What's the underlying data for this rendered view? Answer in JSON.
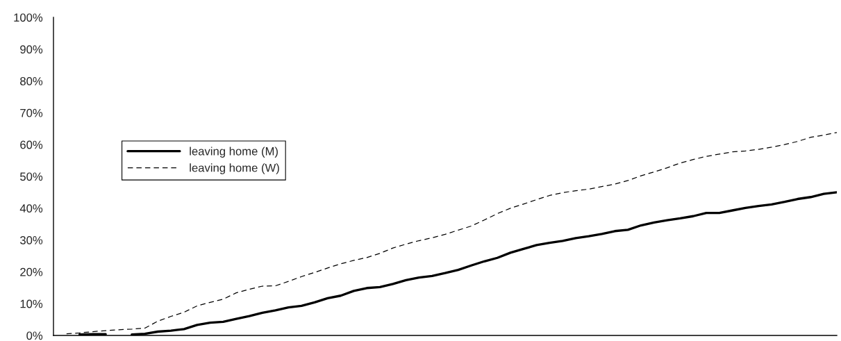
{
  "chart_data": {
    "type": "line",
    "categories": [
      null,
      null,
      null,
      null,
      null,
      null,
      null,
      null,
      null,
      null,
      null,
      null,
      null,
      null,
      null,
      null,
      null,
      null,
      null,
      null,
      null,
      null,
      null,
      null,
      null,
      null,
      null,
      null,
      null,
      null,
      null,
      null,
      null,
      null,
      null,
      null,
      null,
      null,
      null,
      null,
      null,
      null,
      null,
      null,
      null,
      null,
      null,
      null,
      null,
      null,
      null,
      null,
      null,
      null,
      null,
      null,
      null,
      null,
      null,
      null
    ],
    "series": [
      {
        "name": "leaving home (M)",
        "color": "#000000",
        "line_style": "solid",
        "values": [
          null,
          0.3,
          0.4,
          0.4,
          null,
          0.3,
          0.5,
          1.2,
          1.5,
          2.0,
          3.3,
          4.0,
          4.3,
          5.2,
          6.1,
          7.1,
          7.9,
          8.8,
          9.3,
          10.4,
          11.7,
          12.5,
          14.0,
          14.9,
          15.2,
          16.2,
          17.4,
          18.2,
          18.7,
          19.6,
          20.6,
          22.0,
          23.3,
          24.4,
          26.0,
          27.2,
          28.4,
          29.1,
          29.7,
          30.6,
          31.2,
          31.9,
          32.8,
          33.2,
          34.6,
          35.5,
          36.2,
          36.8,
          37.5,
          38.5,
          38.5,
          39.3,
          40.1,
          40.7,
          41.2,
          42.0,
          42.9,
          43.5,
          44.5,
          45.0
        ]
      },
      {
        "name": "leaving home (W)",
        "color": "#000000",
        "line_style": "dashed",
        "values": [
          0.5,
          0.8,
          1.2,
          1.5,
          1.8,
          2.0,
          2.3,
          4.5,
          6.0,
          7.3,
          9.3,
          10.4,
          11.4,
          13.4,
          14.5,
          15.5,
          15.6,
          17.0,
          18.5,
          19.8,
          21.2,
          22.5,
          23.6,
          24.5,
          25.8,
          27.5,
          28.7,
          29.8,
          30.7,
          31.8,
          33.1,
          34.4,
          36.3,
          38.3,
          40.0,
          41.3,
          42.7,
          44.0,
          44.9,
          45.5,
          46.0,
          46.8,
          47.6,
          48.7,
          50.2,
          51.4,
          52.7,
          54.2,
          55.3,
          56.3,
          57.0,
          57.7,
          58.0,
          58.5,
          59.2,
          60.0,
          61.0,
          62.3,
          63.0,
          63.8
        ]
      }
    ],
    "ylim": [
      0,
      100
    ],
    "yticks": [
      {
        "value": 0,
        "label": "0%"
      },
      {
        "value": 10,
        "label": "10%"
      },
      {
        "value": 20,
        "label": "20%"
      },
      {
        "value": 30,
        "label": "30%"
      },
      {
        "value": 40,
        "label": "40%"
      },
      {
        "value": 50,
        "label": "50%"
      },
      {
        "value": 60,
        "label": "60%"
      },
      {
        "value": 70,
        "label": "70%"
      },
      {
        "value": 80,
        "label": "80%"
      },
      {
        "value": 90,
        "label": "90%"
      },
      {
        "value": 100,
        "label": "100%"
      }
    ],
    "tick_labels": "y",
    "grid": false,
    "legend": "center left",
    "marker": "none"
  }
}
